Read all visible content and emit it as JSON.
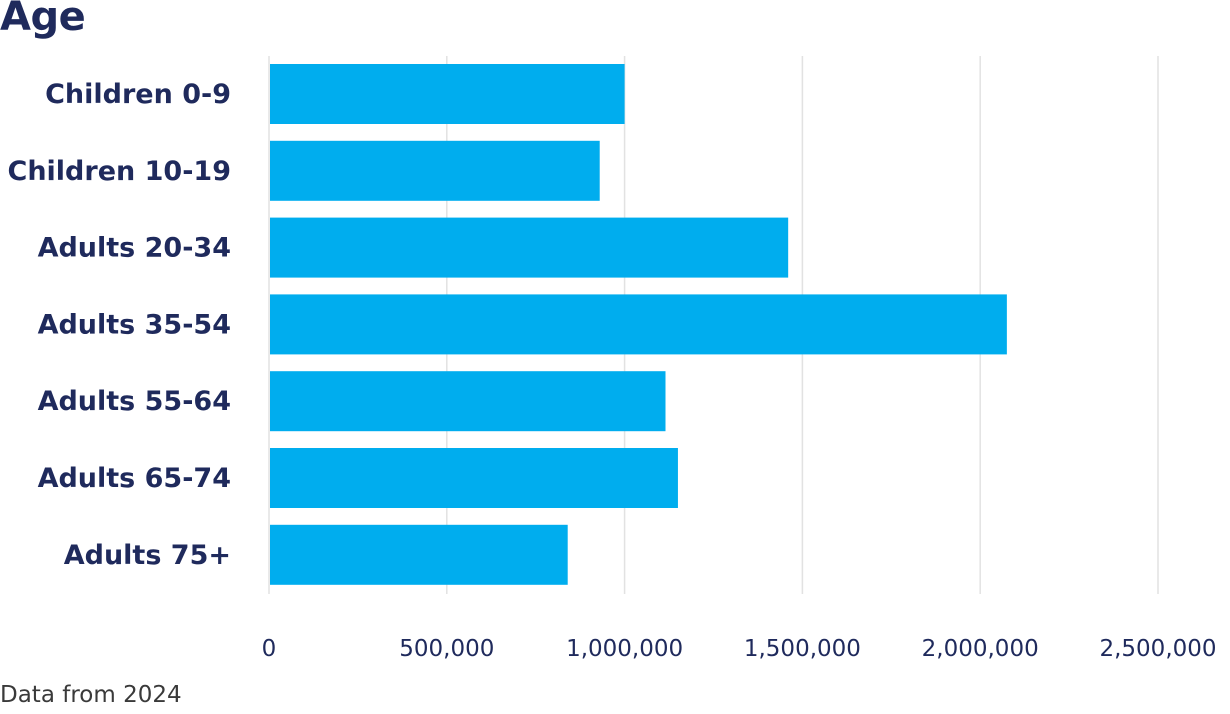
{
  "chart_data": {
    "type": "bar",
    "orientation": "horizontal",
    "title": "Age",
    "footnote": "Data from 2024",
    "categories": [
      "Children 0-9",
      "Children 10-19",
      "Adults 20-34",
      "Adults 35-54",
      "Adults 55-64",
      "Adults 65-74",
      "Adults 75+"
    ],
    "values": [
      1000000,
      930000,
      1460000,
      2075000,
      1115000,
      1150000,
      840000
    ],
    "xlim": [
      0,
      2500000
    ],
    "xticks": [
      0,
      500000,
      1000000,
      1500000,
      2000000,
      2500000
    ],
    "xtick_labels": [
      "0",
      "500,000",
      "1,000,000",
      "1,500,000",
      "2,000,000",
      "2,500,000"
    ],
    "grid": "vertical",
    "bar_color": "#00adee",
    "text_color": "#1f2a5c",
    "grid_color": "#e2e2e2"
  }
}
